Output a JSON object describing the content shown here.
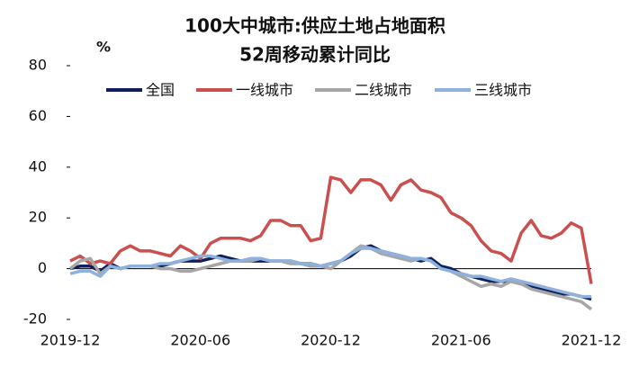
{
  "chart_data": {
    "type": "line",
    "title": [
      "100大中城市:供应土地占地面积",
      "52周移动累计同比"
    ],
    "y_label": "%",
    "categories": [
      "2019-12",
      null,
      null,
      null,
      null,
      null,
      null,
      null,
      null,
      null,
      null,
      null,
      null,
      "2020-06",
      null,
      null,
      null,
      null,
      null,
      null,
      null,
      null,
      null,
      null,
      null,
      null,
      "2020-12",
      null,
      null,
      null,
      null,
      null,
      null,
      null,
      null,
      null,
      null,
      null,
      null,
      "2021-06",
      null,
      null,
      null,
      null,
      null,
      null,
      null,
      null,
      null,
      null,
      null,
      null,
      "2021-12"
    ],
    "series": [
      {
        "name": "全国",
        "color": "#0f1f5e",
        "values": [
          0,
          1,
          1,
          -1,
          2,
          0,
          1,
          1,
          1,
          1,
          2,
          3,
          3,
          3,
          4,
          5,
          4,
          3,
          3,
          3,
          3,
          3,
          3,
          2,
          2,
          1,
          2,
          3,
          5,
          8,
          9,
          7,
          6,
          5,
          4,
          3,
          4,
          1,
          0,
          -2,
          -3,
          -4,
          -5,
          -5,
          -5,
          -6,
          -7,
          -8,
          -9,
          -10,
          -10,
          -11,
          -12
        ]
      },
      {
        "name": "一线城市",
        "color": "#c9504f",
        "values": [
          3,
          5,
          2,
          3,
          2,
          7,
          9,
          7,
          7,
          6,
          5,
          9,
          7,
          4,
          10,
          12,
          12,
          12,
          11,
          13,
          19,
          19,
          17,
          17,
          11,
          12,
          36,
          35,
          30,
          35,
          35,
          33,
          27,
          33,
          35,
          31,
          30,
          28,
          22,
          20,
          17,
          11,
          7,
          6,
          3,
          14,
          19,
          13,
          12,
          14,
          18,
          16,
          -6
        ]
      },
      {
        "name": "二线城市",
        "color": "#a6a6a6",
        "values": [
          0,
          3,
          4,
          -2,
          1,
          0,
          1,
          1,
          1,
          0,
          0,
          -1,
          -1,
          0,
          1,
          2,
          3,
          3,
          3,
          4,
          3,
          3,
          2,
          2,
          1,
          1,
          0,
          3,
          6,
          9,
          8,
          6,
          5,
          4,
          3,
          4,
          3,
          0,
          -1,
          -3,
          -5,
          -7,
          -6,
          -7,
          -5,
          -6,
          -8,
          -9,
          -10,
          -11,
          -12,
          -13,
          -16
        ]
      },
      {
        "name": "三线城市",
        "color": "#8fb1de",
        "values": [
          -2,
          -1,
          -1,
          -3,
          1,
          0,
          1,
          1,
          1,
          2,
          2,
          3,
          4,
          5,
          5,
          4,
          3,
          3,
          4,
          4,
          3,
          3,
          3,
          2,
          2,
          1,
          2,
          3,
          6,
          8,
          8,
          7,
          6,
          5,
          4,
          4,
          3,
          0,
          -1,
          -2,
          -3,
          -3,
          -4,
          -5,
          -4,
          -5,
          -6,
          -7,
          -8,
          -9,
          -10,
          -11,
          -11
        ]
      }
    ],
    "ylim": [
      -20,
      80
    ],
    "yticks": [
      -20,
      0,
      20,
      40,
      60,
      80
    ],
    "grid": false,
    "legend": "top"
  }
}
